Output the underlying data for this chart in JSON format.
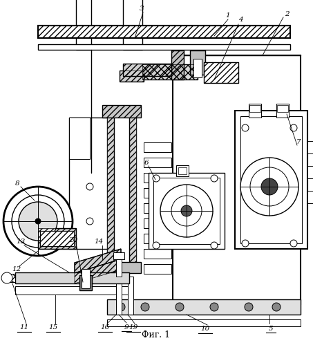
{
  "caption": "Фиг. 1",
  "background_color": "#ffffff",
  "figsize": [
    4.53,
    4.99
  ],
  "dpi": 100,
  "line_color": "#000000",
  "hatch_color": "#000000"
}
